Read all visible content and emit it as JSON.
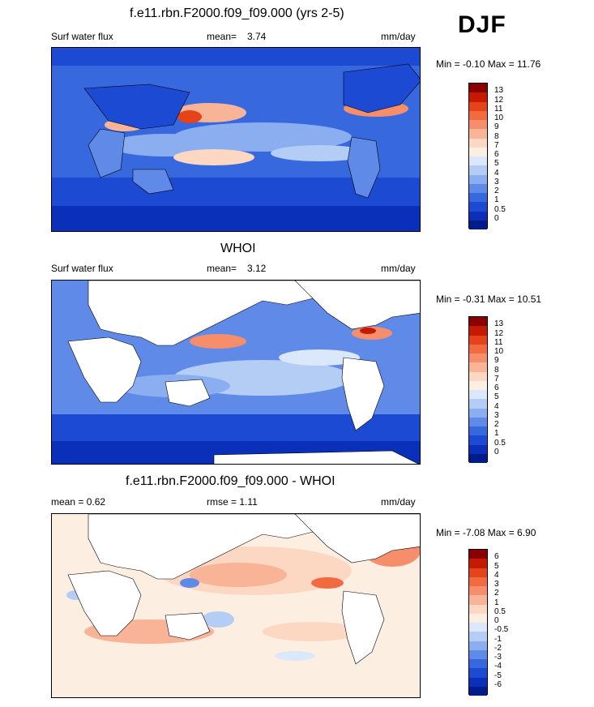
{
  "season": "DJF",
  "panels": [
    {
      "title": "f.e11.rbn.F2000.f09_f09.000 (yrs 2-5)",
      "left_label": "Surf water flux",
      "mean_label": "mean=",
      "mean_value": "3.74",
      "units": "mm/day",
      "minmax": "Min =  -0.10 Max =  11.76",
      "colorbar_labels": [
        "13",
        "12",
        "11",
        "10",
        "9",
        "8",
        "7",
        "6",
        "5",
        "4",
        "3",
        "2",
        "1",
        "0.5",
        "0"
      ]
    },
    {
      "title": "WHOI",
      "left_label": "Surf water flux",
      "mean_label": "mean=",
      "mean_value": "3.12",
      "units": "mm/day",
      "minmax": "Min =  -0.31 Max =  10.51",
      "colorbar_labels": [
        "13",
        "12",
        "11",
        "10",
        "9",
        "8",
        "7",
        "6",
        "5",
        "4",
        "3",
        "2",
        "1",
        "0.5",
        "0"
      ]
    },
    {
      "title": "f.e11.rbn.F2000.f09_f09.000 - WHOI",
      "left_label": "mean =   0.62",
      "mid_label": "rmse =   1.11",
      "units": "mm/day",
      "minmax": "Min =  -7.08 Max =   6.90",
      "colorbar_labels": [
        "6",
        "5",
        "4",
        "3",
        "2",
        "1",
        "0.5",
        "0",
        "-0.5",
        "-1",
        "-2",
        "-3",
        "-4",
        "-5",
        "-6"
      ]
    }
  ],
  "colors": {
    "seq": [
      "#8a0000",
      "#c41b00",
      "#e5431a",
      "#f26a3f",
      "#f68d6b",
      "#f9b396",
      "#fcd8c2",
      "#fdeee2",
      "#dbe8fb",
      "#b3cdf5",
      "#8aaef0",
      "#5f8ae8",
      "#3868de",
      "#1c4ad3",
      "#0a2fb8",
      "#001c8a"
    ],
    "div": [
      "#8a0000",
      "#c41b00",
      "#e5431a",
      "#f26a3f",
      "#f68d6b",
      "#f9b396",
      "#fcd8c2",
      "#fdeee2",
      "#dbe8fb",
      "#b3cdf5",
      "#8aaef0",
      "#5f8ae8",
      "#3868de",
      "#1c4ad3",
      "#0a2fb8",
      "#001c8a"
    ]
  }
}
